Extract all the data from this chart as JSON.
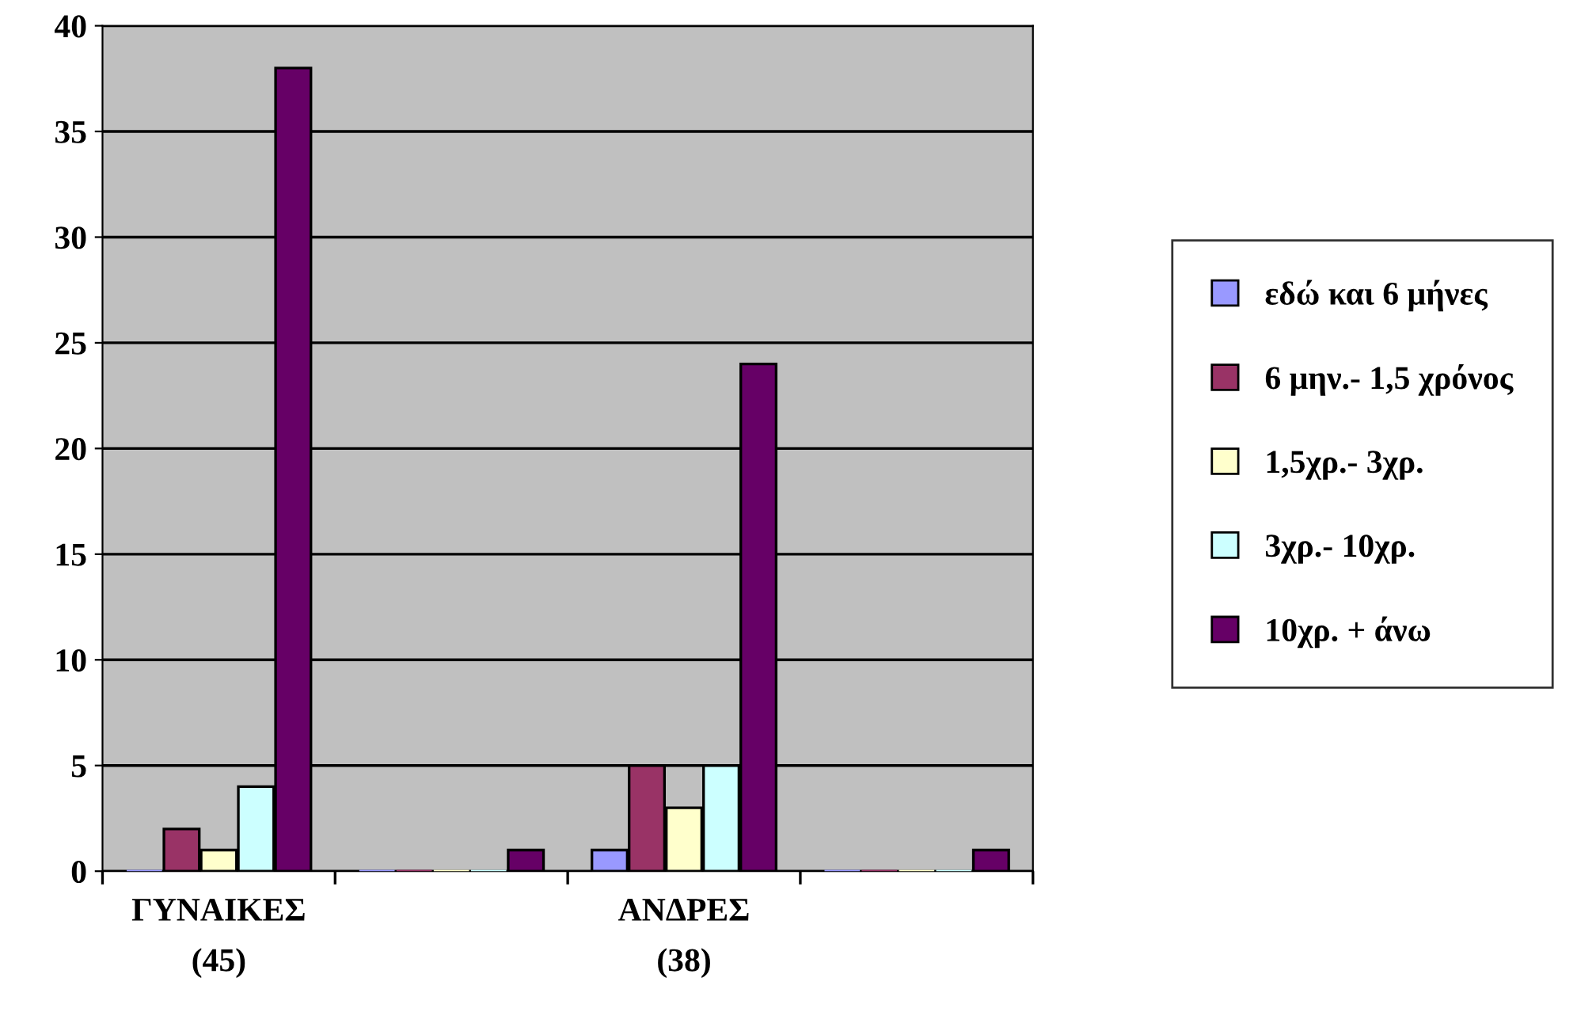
{
  "chart_data": {
    "type": "bar",
    "categories": [
      "ΓΥΝΑΙΚΕΣ\n(45)",
      null,
      "ΑΝΔΡΕΣ\n(38)",
      null
    ],
    "series": [
      {
        "name": "εδώ και 6 μήνες",
        "color": "#9999ff",
        "values": [
          0,
          0,
          1,
          0
        ]
      },
      {
        "name": "6 μην.- 1,5 χρόνος",
        "color": "#993366",
        "values": [
          2,
          0,
          5,
          0
        ]
      },
      {
        "name": "1,5χρ.- 3χρ.",
        "color": "#ffffcc",
        "values": [
          1,
          0,
          3,
          0
        ]
      },
      {
        "name": "3χρ.- 10χρ.",
        "color": "#ccffff",
        "values": [
          4,
          0,
          5,
          0
        ]
      },
      {
        "name": "10χρ. + άνω",
        "color": "#660066",
        "values": [
          38,
          1,
          24,
          1
        ]
      }
    ],
    "ylim": [
      0,
      40
    ],
    "yticks": [
      0,
      5,
      10,
      15,
      20,
      25,
      30,
      35,
      40
    ],
    "grid": "y",
    "legend": "right"
  }
}
